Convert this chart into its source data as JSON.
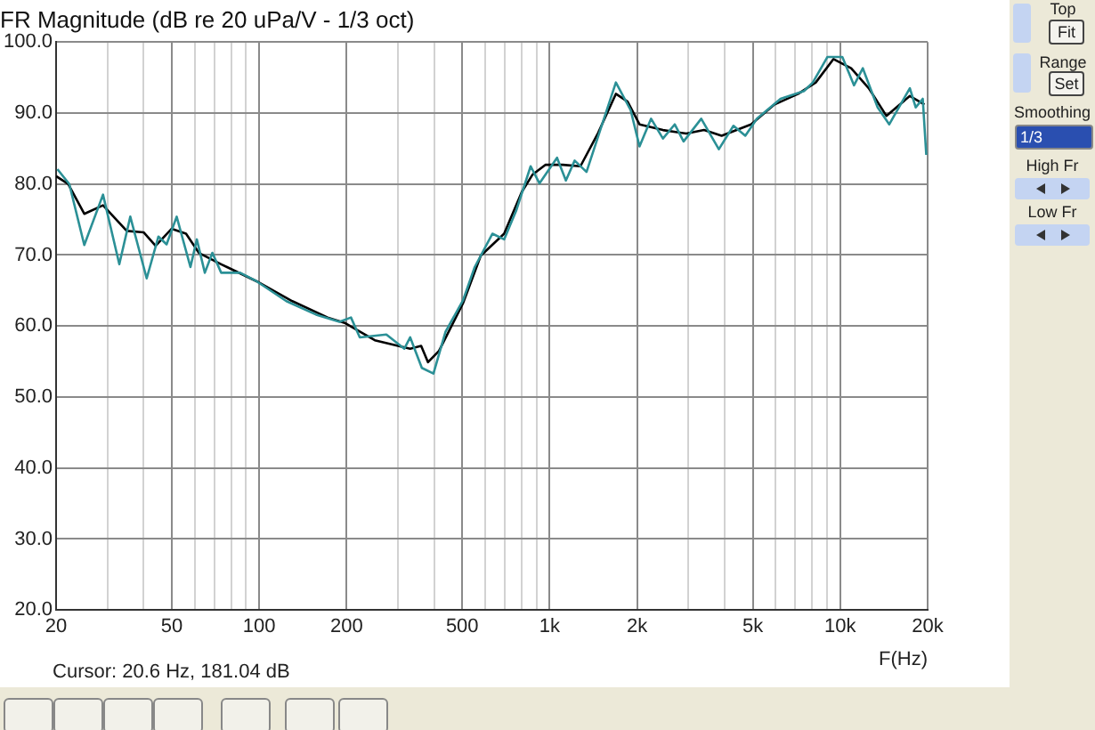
{
  "chart_data": {
    "type": "line",
    "title": "FR Magnitude (dB re 20 uPa/V - 1/3 oct)",
    "xlabel": "F(Hz)",
    "log": "x",
    "grid": true,
    "legend": false,
    "marker": "none",
    "line_style": "solid",
    "xlim": [
      20,
      20000
    ],
    "ylim": [
      20,
      100
    ],
    "xticks": [
      {
        "value": 20,
        "label": "20"
      },
      {
        "value": 30,
        "label": null
      },
      {
        "value": 40,
        "label": null
      },
      {
        "value": 50,
        "label": "50"
      },
      {
        "value": 60,
        "label": null
      },
      {
        "value": 70,
        "label": null
      },
      {
        "value": 80,
        "label": null
      },
      {
        "value": 90,
        "label": null
      },
      {
        "value": 100,
        "label": "100"
      },
      {
        "value": 200,
        "label": "200"
      },
      {
        "value": 300,
        "label": null
      },
      {
        "value": 400,
        "label": null
      },
      {
        "value": 500,
        "label": "500"
      },
      {
        "value": 600,
        "label": null
      },
      {
        "value": 700,
        "label": null
      },
      {
        "value": 800,
        "label": null
      },
      {
        "value": 900,
        "label": null
      },
      {
        "value": 1000,
        "label": "1k"
      },
      {
        "value": 2000,
        "label": "2k"
      },
      {
        "value": 3000,
        "label": null
      },
      {
        "value": 4000,
        "label": null
      },
      {
        "value": 5000,
        "label": "5k"
      },
      {
        "value": 6000,
        "label": null
      },
      {
        "value": 7000,
        "label": null
      },
      {
        "value": 8000,
        "label": null
      },
      {
        "value": 9000,
        "label": null
      },
      {
        "value": 10000,
        "label": "10k"
      },
      {
        "value": 20000,
        "label": "20k"
      }
    ],
    "yticks": [
      {
        "value": 20,
        "label": "20.0"
      },
      {
        "value": 30,
        "label": "30.0"
      },
      {
        "value": 40,
        "label": "40.0"
      },
      {
        "value": 50,
        "label": "50.0"
      },
      {
        "value": 60,
        "label": "60.0"
      },
      {
        "value": 70,
        "label": "70.0"
      },
      {
        "value": 80,
        "label": "80.0"
      },
      {
        "value": 90,
        "label": "90.0"
      },
      {
        "value": 100,
        "label": "100.0"
      }
    ],
    "annotations": [
      "Cursor: 20.6 Hz, 181.04 dB",
      "Top",
      "Fit",
      "Range",
      "Set",
      "Smoothing",
      "1/3",
      "High Fr",
      "Low Fr"
    ],
    "series": [
      {
        "color": "#2b9096",
        "x": [
          20.2,
          22.2,
          25,
          29,
          33,
          36,
          41,
          45,
          48,
          52,
          58,
          61,
          65,
          69,
          74,
          86,
          98,
          124,
          157,
          189,
          207,
          222,
          274,
          316,
          331,
          363,
          398,
          438,
          503,
          552,
          635,
          697,
          766,
          860,
          922,
          1060,
          1137,
          1219,
          1339,
          1504,
          1690,
          1900,
          2038,
          2234,
          2454,
          2694,
          2890,
          3324,
          3822,
          4292,
          4714,
          5170,
          6234,
          7508,
          8052,
          9042,
          10172,
          11156,
          11966,
          13450,
          14756,
          17372,
          18196,
          19242,
          19786
        ],
        "values": [
          82.1,
          80.0,
          71.4,
          78.5,
          68.7,
          75.4,
          66.7,
          72.6,
          71.5,
          75.4,
          68.3,
          72.2,
          67.5,
          70.3,
          67.5,
          67.5,
          66.3,
          63.5,
          61.6,
          60.6,
          61.2,
          58.4,
          58.8,
          56.8,
          58.4,
          54.1,
          53.3,
          59.2,
          63.6,
          68.3,
          73.0,
          72.2,
          76.2,
          82.5,
          80.1,
          83.7,
          80.5,
          83.3,
          81.7,
          88.0,
          94.3,
          90.4,
          85.3,
          89.2,
          86.4,
          88.4,
          86.0,
          89.2,
          84.9,
          88.2,
          86.8,
          89.2,
          92.0,
          93.1,
          94.3,
          97.9,
          97.9,
          93.9,
          96.3,
          90.8,
          88.4,
          93.5,
          90.8,
          92.0,
          84.1
        ]
      },
      {
        "color": "#000000",
        "x": [
          20,
          22,
          25,
          29,
          35,
          40,
          44,
          50,
          56,
          62,
          74,
          98,
          130,
          172,
          198,
          250,
          331,
          361,
          381,
          416,
          503,
          579,
          697,
          802,
          872,
          966,
          1110,
          1276,
          1468,
          1690,
          1854,
          2038,
          2454,
          2954,
          3398,
          3908,
          4934,
          5944,
          7170,
          8242,
          9484,
          10906,
          12540,
          14422,
          17372,
          19500
        ],
        "values": [
          81.1,
          80.0,
          75.8,
          77.0,
          73.4,
          73.2,
          71.3,
          73.7,
          73.0,
          70.3,
          68.7,
          66.3,
          63.5,
          61.2,
          60.4,
          58.0,
          56.8,
          57.2,
          54.9,
          56.5,
          63.2,
          69.9,
          73.0,
          78.9,
          81.3,
          82.7,
          82.7,
          82.5,
          87.2,
          92.7,
          91.6,
          88.4,
          87.6,
          87.1,
          87.6,
          86.8,
          88.4,
          91.2,
          92.7,
          94.3,
          97.6,
          96.3,
          93.5,
          89.6,
          92.4,
          91.2
        ]
      }
    ]
  }
}
